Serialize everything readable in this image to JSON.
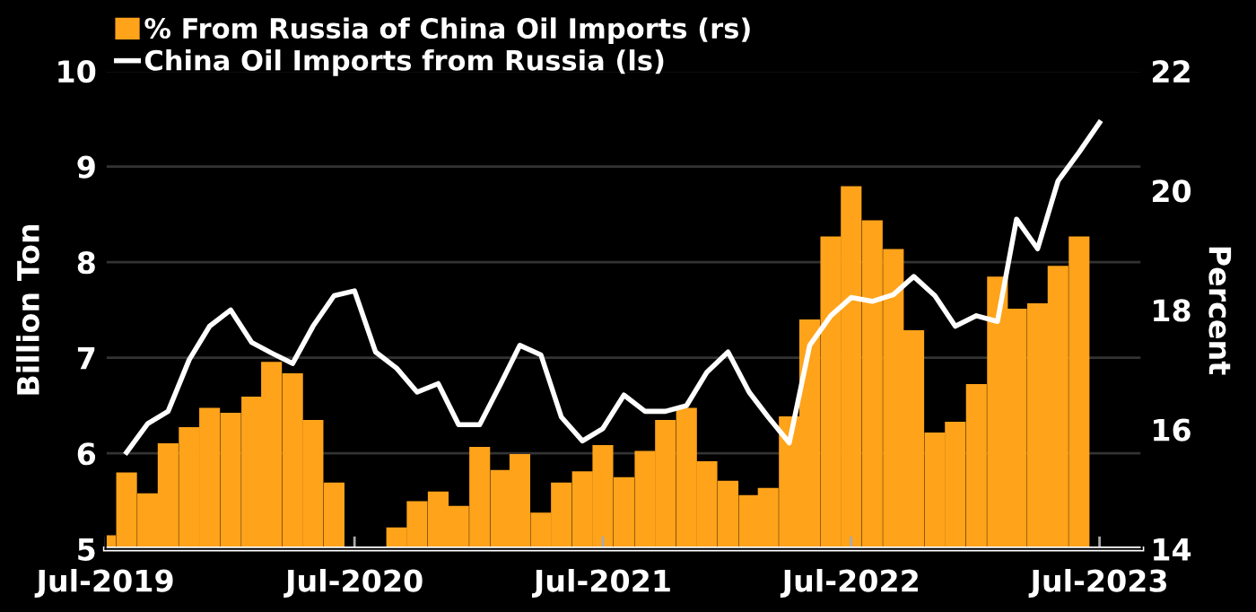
{
  "chart_data": {
    "type": "bar",
    "ylabel": "Billion Ton",
    "y2label": "Percent",
    "xlim": [
      "2019-07",
      "2023-09"
    ],
    "xticks": [
      {
        "value": "2019-07",
        "label": "Jul-2019"
      },
      {
        "value": "2020-07",
        "label": "Jul-2020"
      },
      {
        "value": "2021-07",
        "label": "Jul-2021"
      },
      {
        "value": "2022-07",
        "label": "Jul-2022"
      },
      {
        "value": "2023-07",
        "label": "Jul-2023"
      }
    ],
    "ylim": [
      5,
      10
    ],
    "yticks": [
      5,
      6,
      7,
      8,
      9,
      10
    ],
    "y2lim": [
      14,
      22
    ],
    "y2ticks": [
      14,
      16,
      18,
      20,
      22
    ],
    "grid": "y",
    "legend": "top left",
    "series": [
      {
        "name": "% From Russia of China Oil Imports (rs)",
        "axis": "y2",
        "color": "#ffa31a",
        "x": [
          "2019-07",
          "2019-08",
          "2019-09",
          "2019-10",
          "2019-11",
          "2019-12",
          "2020-01",
          "2020-02",
          "2020-03",
          "2020-04",
          "2020-05",
          "2020-06",
          "2020-07",
          "2020-08",
          "2020-09",
          "2020-10",
          "2020-11",
          "2020-12",
          "2021-01",
          "2021-02",
          "2021-03",
          "2021-04",
          "2021-05",
          "2021-06",
          "2021-07",
          "2021-08",
          "2021-09",
          "2021-10",
          "2021-11",
          "2021-12",
          "2022-01",
          "2022-02",
          "2022-03",
          "2022-04",
          "2022-05",
          "2022-06",
          "2022-07",
          "2022-08",
          "2022-09",
          "2022-10",
          "2022-11",
          "2022-12",
          "2023-01",
          "2023-02",
          "2023-03",
          "2023-04",
          "2023-05",
          "2023-06"
        ],
        "values": [
          14.23,
          15.28,
          14.93,
          15.77,
          16.04,
          16.36,
          16.28,
          16.55,
          17.13,
          16.94,
          16.16,
          15.11,
          null,
          null,
          14.36,
          14.8,
          14.96,
          14.72,
          15.71,
          15.32,
          15.59,
          14.61,
          15.11,
          15.3,
          15.74,
          15.2,
          15.64,
          16.16,
          16.36,
          15.47,
          15.14,
          14.9,
          15.02,
          16.22,
          17.84,
          19.23,
          20.07,
          19.5,
          19.02,
          17.66,
          15.95,
          16.13,
          16.76,
          18.56,
          18.02,
          18.11,
          18.74,
          19.23
        ]
      },
      {
        "name": "China Oil Imports from Russia (ls)",
        "type": "line",
        "color": "#ffffff",
        "marker": "none",
        "line_style": "solid",
        "x": [
          "2019-08",
          "2019-09",
          "2019-10",
          "2019-11",
          "2019-12",
          "2020-01",
          "2020-02",
          "2020-03",
          "2020-04",
          "2020-05",
          "2020-06",
          "2020-07",
          "2020-08",
          "2020-09",
          "2020-10",
          "2020-11",
          "2020-12",
          "2021-01",
          "2021-02",
          "2021-03",
          "2021-04",
          "2021-05",
          "2021-06",
          "2021-07",
          "2021-08",
          "2021-09",
          "2021-10",
          "2021-11",
          "2021-12",
          "2022-01",
          "2022-02",
          "2022-03",
          "2022-04",
          "2022-05",
          "2022-06",
          "2022-07",
          "2022-08",
          "2022-09",
          "2022-10",
          "2022-11",
          "2022-12",
          "2023-01",
          "2023-02",
          "2023-03",
          "2023-04",
          "2023-05",
          "2023-06",
          "2023-07"
        ],
        "values": [
          6.01,
          6.31,
          6.44,
          6.98,
          7.33,
          7.5,
          7.16,
          7.05,
          6.94,
          7.33,
          7.65,
          7.7,
          7.06,
          6.89,
          6.64,
          6.73,
          6.3,
          6.3,
          6.73,
          7.13,
          7.03,
          6.38,
          6.13,
          6.26,
          6.61,
          6.44,
          6.44,
          6.5,
          6.85,
          7.06,
          6.64,
          6.38,
          6.11,
          7.13,
          7.44,
          7.63,
          7.59,
          7.66,
          7.85,
          7.65,
          7.33,
          7.44,
          7.38,
          8.45,
          8.14,
          8.85,
          9.15,
          9.46
        ]
      }
    ]
  }
}
